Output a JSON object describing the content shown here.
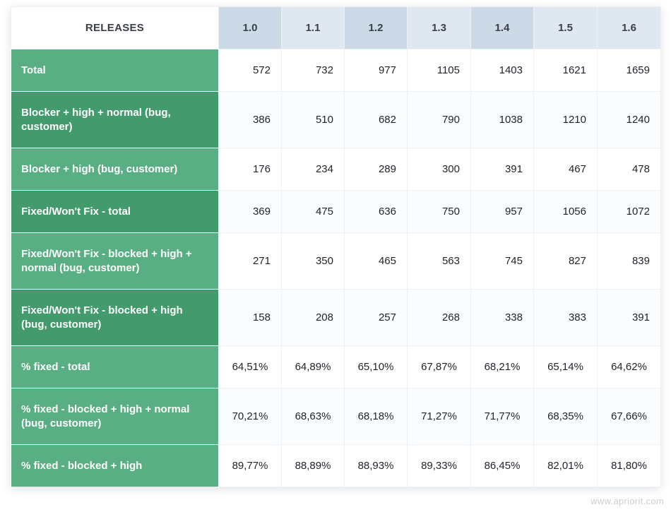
{
  "watermark": "www.apriorit.com",
  "chart_data": {
    "type": "table",
    "corner_label": "RELEASES",
    "columns": [
      "1.0",
      "1.1",
      "1.2",
      "1.3",
      "1.4",
      "1.5",
      "1.6"
    ],
    "rows": [
      {
        "label": "Total",
        "values": [
          "572",
          "732",
          "977",
          "1105",
          "1403",
          "1621",
          "1659"
        ]
      },
      {
        "label": "Blocker + high + normal (bug, customer)",
        "values": [
          "386",
          "510",
          "682",
          "790",
          "1038",
          "1210",
          "1240"
        ]
      },
      {
        "label": "Blocker + high (bug, customer)",
        "values": [
          "176",
          "234",
          "289",
          "300",
          "391",
          "467",
          "478"
        ]
      },
      {
        "label": "Fixed/Won't Fix - total",
        "values": [
          "369",
          "475",
          "636",
          "750",
          "957",
          "1056",
          "1072"
        ]
      },
      {
        "label": "Fixed/Won't Fix - blocked + high + normal (bug, customer)",
        "values": [
          "271",
          "350",
          "465",
          "563",
          "745",
          "827",
          "839"
        ]
      },
      {
        "label": "Fixed/Won't Fix - blocked + high (bug, customer)",
        "values": [
          "158",
          "208",
          "257",
          "268",
          "338",
          "383",
          "391"
        ]
      },
      {
        "label": "% fixed - total",
        "values": [
          "64,51%",
          "64,89%",
          "65,10%",
          "67,87%",
          "68,21%",
          "65,14%",
          "64,62%"
        ]
      },
      {
        "label": "% fixed - blocked + high + normal (bug, customer)",
        "values": [
          "70,21%",
          "68,63%",
          "68,18%",
          "71,27%",
          "71,77%",
          "68,35%",
          "67,66%"
        ]
      },
      {
        "label": "% fixed - blocked + high",
        "values": [
          "89,77%",
          "88,89%",
          "88,93%",
          "89,33%",
          "86,45%",
          "82,01%",
          "81,80%"
        ]
      }
    ],
    "colors": {
      "label_light": "#5aae84",
      "label_dark": "#439a6d",
      "header_light": "#dfe8f0",
      "header_dark": "#ccdae7"
    }
  }
}
